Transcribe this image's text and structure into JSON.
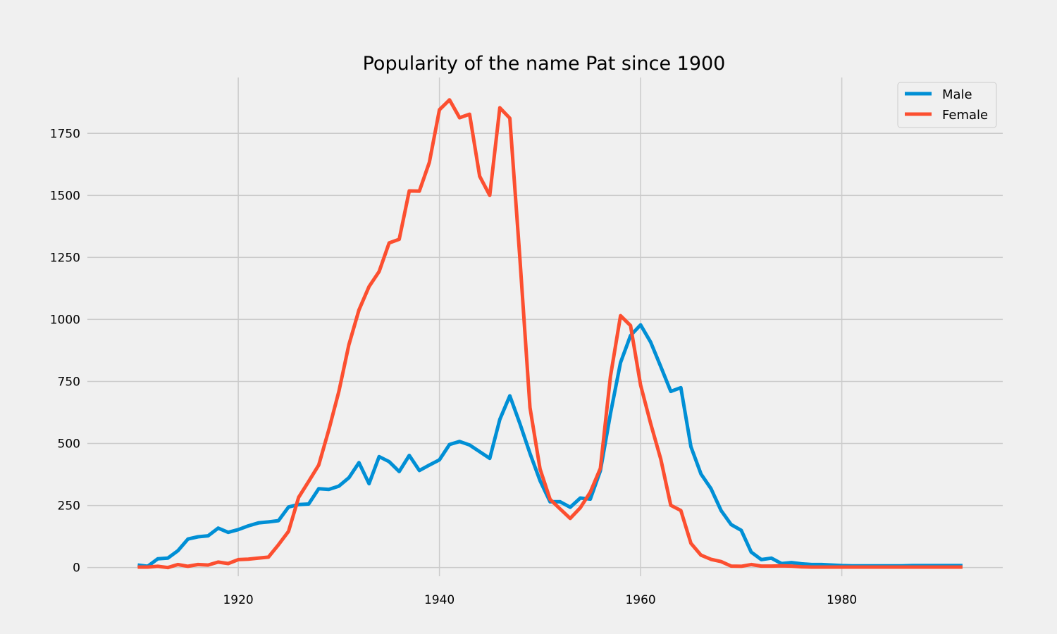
{
  "chart_data": {
    "type": "line",
    "title": "Popularity of the name Pat since 1900",
    "xlabel": "",
    "ylabel": "",
    "xlim": [
      1905,
      1996
    ],
    "ylim": [
      -35,
      1975
    ],
    "x_ticks": [
      1920,
      1940,
      1960,
      1980
    ],
    "y_ticks": [
      0,
      250,
      500,
      750,
      1000,
      1250,
      1500,
      1750
    ],
    "grid": true,
    "legend_position": "top-right",
    "x": [
      1910,
      1911,
      1912,
      1913,
      1914,
      1915,
      1916,
      1917,
      1918,
      1919,
      1920,
      1921,
      1922,
      1923,
      1924,
      1925,
      1926,
      1927,
      1928,
      1929,
      1930,
      1931,
      1932,
      1933,
      1934,
      1935,
      1936,
      1937,
      1938,
      1939,
      1940,
      1941,
      1942,
      1943,
      1944,
      1945,
      1946,
      1947,
      1948,
      1949,
      1950,
      1951,
      1952,
      1953,
      1954,
      1955,
      1956,
      1957,
      1958,
      1959,
      1960,
      1961,
      1962,
      1963,
      1964,
      1965,
      1966,
      1967,
      1968,
      1969,
      1970,
      1971,
      1972,
      1973,
      1974,
      1975,
      1976,
      1977,
      1978,
      1979,
      1980,
      1981,
      1982,
      1983,
      1984,
      1985,
      1986,
      1987,
      1988,
      1989,
      1990,
      1991,
      1992
    ],
    "series": [
      {
        "name": "Male",
        "color": "#008fd5",
        "values": [
          10,
          5,
          35,
          38,
          68,
          115,
          124,
          128,
          159,
          142,
          153,
          168,
          180,
          184,
          189,
          244,
          254,
          256,
          318,
          315,
          328,
          362,
          423,
          338,
          447,
          427,
          387,
          452,
          391,
          413,
          434,
          496,
          508,
          494,
          467,
          440,
          597,
          692,
          580,
          460,
          350,
          265,
          265,
          243,
          280,
          276,
          390,
          620,
          826,
          935,
          978,
          908,
          810,
          710,
          725,
          487,
          377,
          318,
          230,
          173,
          150,
          62,
          32,
          38,
          16,
          20,
          15,
          12,
          12,
          10,
          8,
          7,
          7,
          7,
          7,
          7,
          7,
          8,
          8,
          8,
          8,
          8,
          8
        ]
      },
      {
        "name": "Female",
        "color": "#fc4f30",
        "values": [
          2,
          2,
          5,
          0,
          12,
          5,
          12,
          10,
          22,
          16,
          32,
          34,
          38,
          42,
          92,
          146,
          283,
          347,
          413,
          555,
          710,
          898,
          1038,
          1132,
          1193,
          1308,
          1323,
          1518,
          1517,
          1633,
          1845,
          1885,
          1813,
          1827,
          1577,
          1500,
          1853,
          1811,
          1245,
          645,
          397,
          275,
          236,
          198,
          241,
          304,
          400,
          770,
          1015,
          975,
          735,
          580,
          437,
          251,
          230,
          98,
          50,
          33,
          24,
          6,
          5,
          12,
          6,
          6,
          7,
          6,
          3,
          2,
          2,
          2,
          2,
          2,
          2,
          2,
          2,
          2,
          2,
          2,
          2,
          2,
          2,
          2,
          2
        ]
      }
    ]
  }
}
